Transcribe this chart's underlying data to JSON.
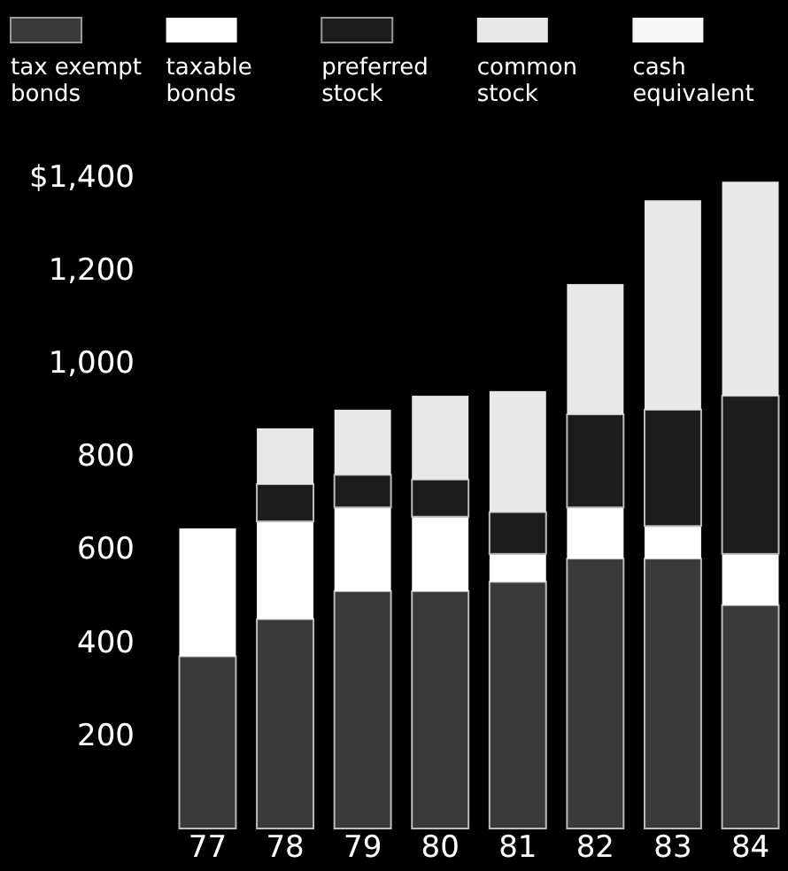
{
  "chart_data": {
    "type": "bar",
    "stacked": true,
    "legend": "top",
    "grid": false,
    "categories": [
      "77",
      "78",
      "79",
      "80",
      "81",
      "82",
      "83",
      "84"
    ],
    "ylim": [
      0,
      1400
    ],
    "yticks": [
      200,
      400,
      600,
      800,
      {
        "value": 1000,
        "label": "1,000"
      },
      {
        "value": 1200,
        "label": "1,200"
      },
      {
        "value": 1400,
        "label": "$1,400"
      }
    ],
    "series": [
      {
        "name": "tax exempt bonds",
        "color": "#3a3a3a",
        "values": [
          370,
          450,
          510,
          510,
          530,
          580,
          580,
          480
        ]
      },
      {
        "name": "taxable bonds",
        "color": "#ffffff",
        "values": [
          275,
          210,
          180,
          160,
          60,
          110,
          70,
          110
        ]
      },
      {
        "name": "preferred stock",
        "color": "#1c1c1c",
        "values": [
          null,
          80,
          70,
          80,
          90,
          200,
          250,
          340
        ]
      },
      {
        "name": "common stock",
        "color": "#e8e8e8",
        "values": [
          null,
          120,
          140,
          180,
          260,
          280,
          450,
          460
        ]
      },
      {
        "name": "cash equivalent",
        "color": "#f7f7f7",
        "values": [
          null,
          null,
          null,
          null,
          null,
          null,
          null,
          null
        ]
      }
    ]
  }
}
